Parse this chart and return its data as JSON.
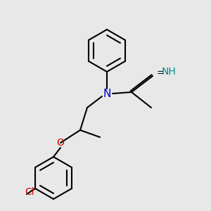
{
  "bg": "#e8e8e8",
  "black": "#000000",
  "blue": "#0000cc",
  "red": "#cc0000",
  "teal": "#008888",
  "lw": 1.5,
  "xlim": [
    0,
    3
  ],
  "ylim": [
    0,
    3
  ]
}
